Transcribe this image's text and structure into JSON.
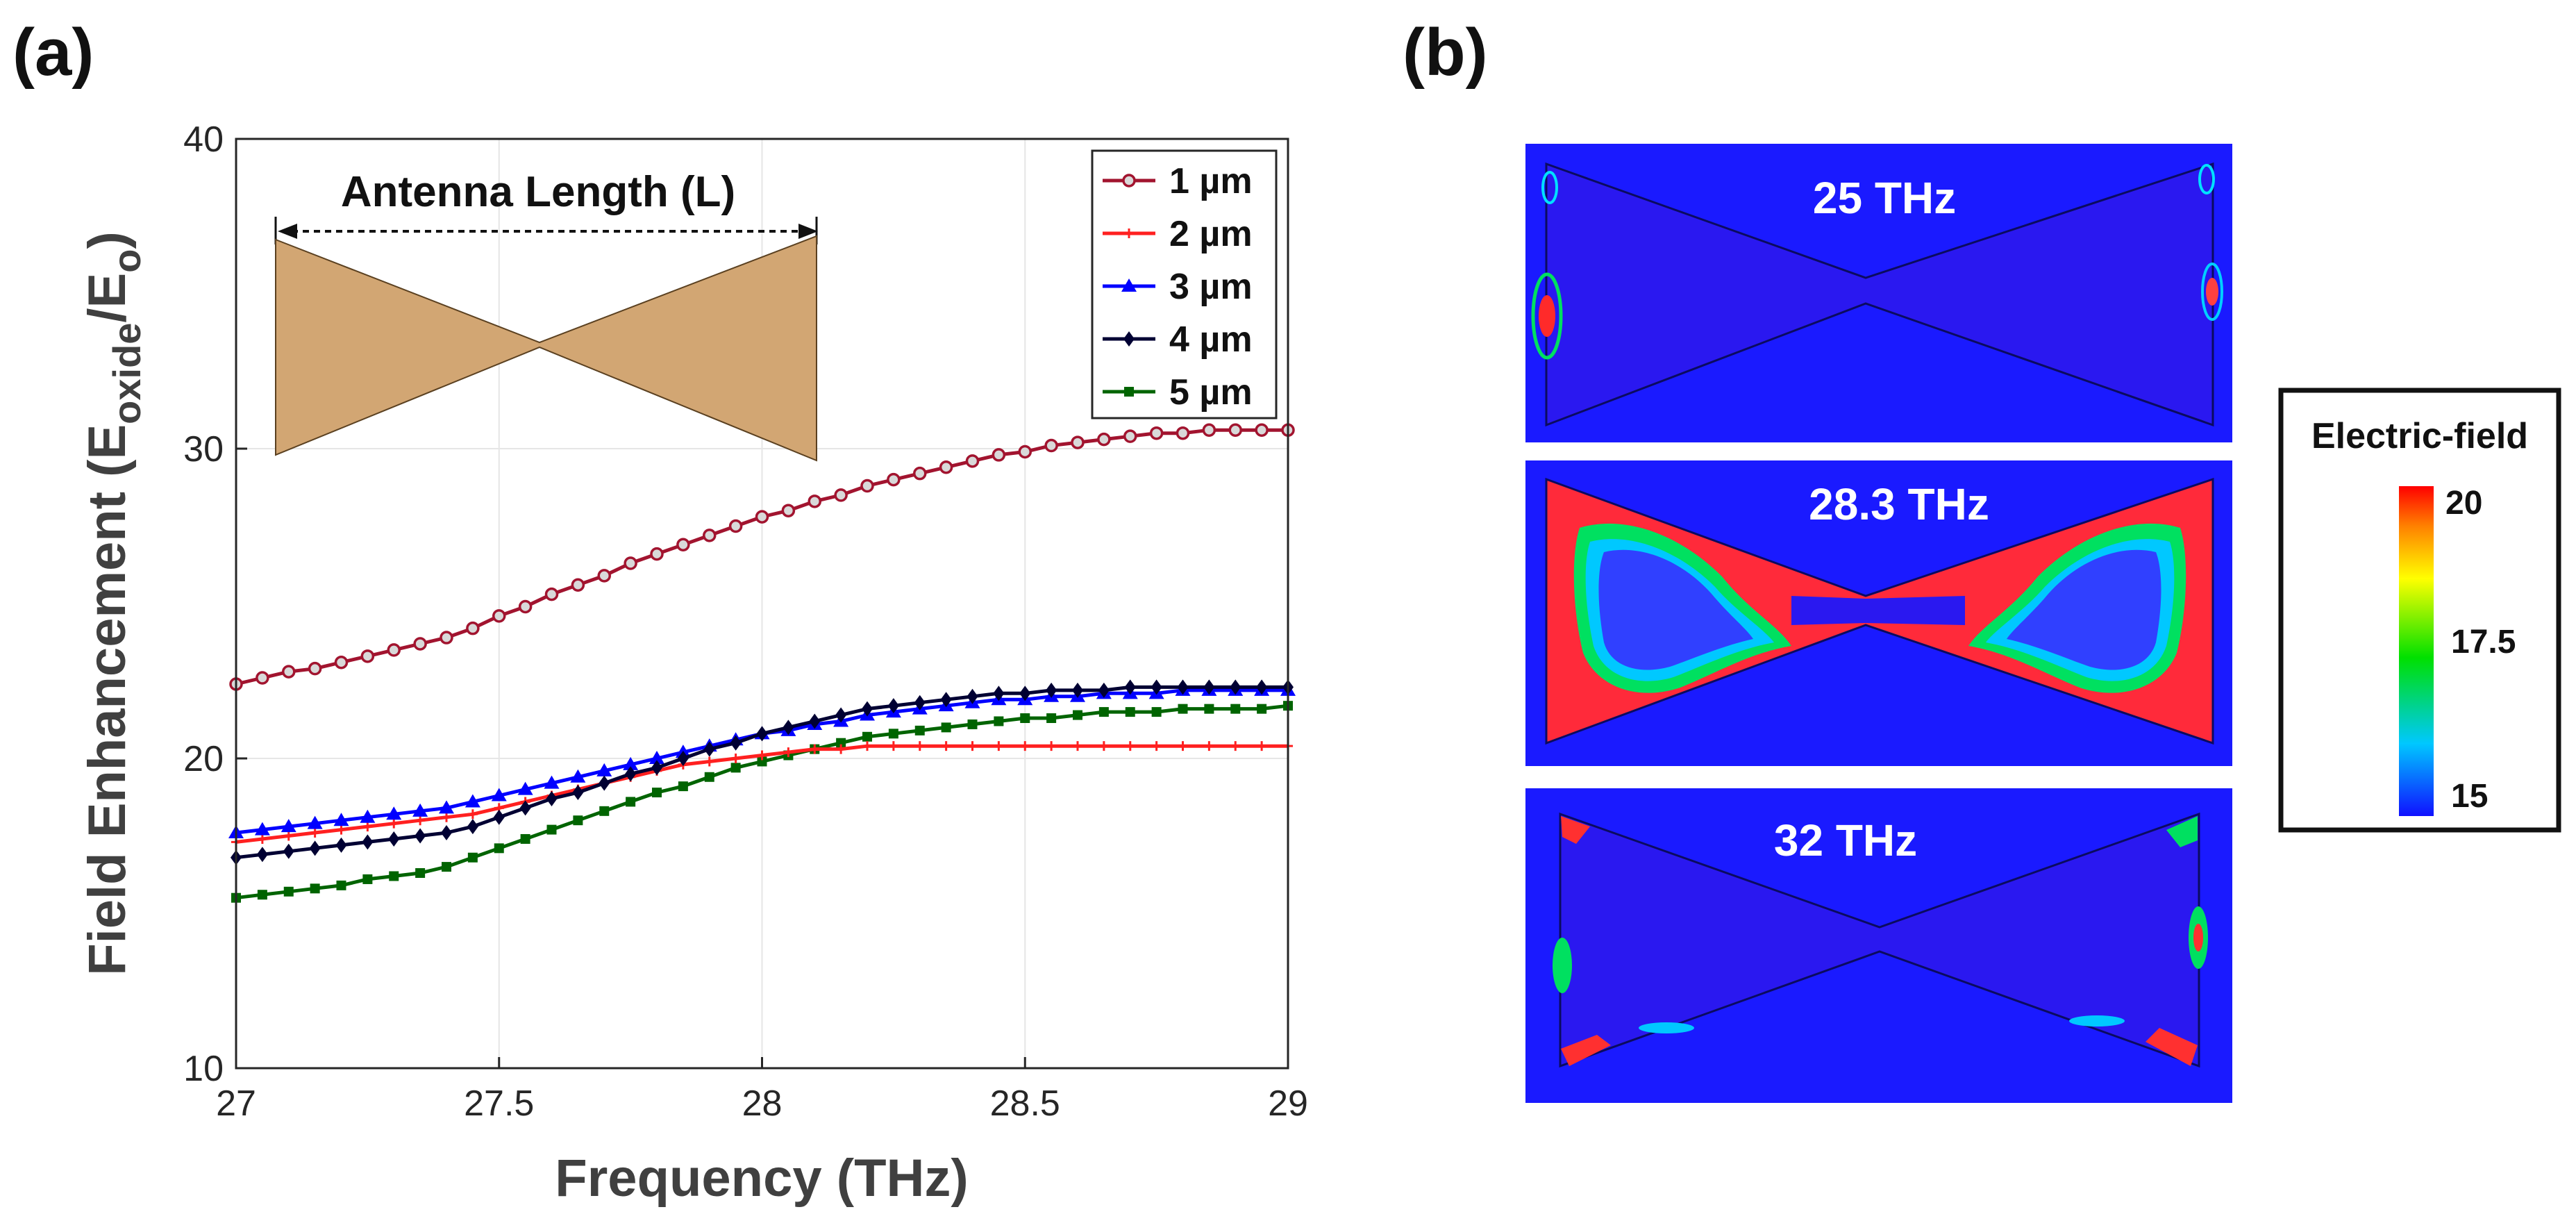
{
  "panel_a_label": "(a)",
  "panel_b_label": "(b)",
  "chart_data": {
    "type": "line",
    "xlabel": "Frequency (THz)",
    "ylabel_parts": [
      "Field Enhancement (E",
      "oxide",
      "/E",
      "o",
      ")"
    ],
    "xlim": [
      27,
      29
    ],
    "ylim": [
      10,
      40
    ],
    "xticks": [
      "27",
      "27.5",
      "28",
      "28.5",
      "29"
    ],
    "yticks": [
      "10",
      "20",
      "30",
      "40"
    ],
    "grid": true,
    "legend_position": "top-right",
    "x_start": 27,
    "x_step": 0.05,
    "series": [
      {
        "name": "1 µm",
        "color": "#a2142f",
        "marker": "circle",
        "values": [
          22.4,
          22.6,
          22.8,
          22.9,
          23.1,
          23.3,
          23.5,
          23.7,
          23.9,
          24.2,
          24.6,
          24.9,
          25.3,
          25.6,
          25.9,
          26.3,
          26.6,
          26.9,
          27.2,
          27.5,
          27.8,
          28.0,
          28.3,
          28.5,
          28.8,
          29.0,
          29.2,
          29.4,
          29.6,
          29.8,
          29.9,
          30.1,
          30.2,
          30.3,
          30.4,
          30.5,
          30.5,
          30.6,
          30.6,
          30.6,
          30.6
        ]
      },
      {
        "name": "2 µm",
        "color": "#ff2020",
        "marker": "plus",
        "values": [
          17.3,
          17.4,
          17.5,
          17.6,
          17.7,
          17.8,
          17.9,
          18.0,
          18.1,
          18.2,
          18.4,
          18.6,
          18.8,
          19.0,
          19.2,
          19.4,
          19.6,
          19.8,
          19.9,
          20.0,
          20.1,
          20.2,
          20.3,
          20.3,
          20.4,
          20.4,
          20.4,
          20.4,
          20.4,
          20.4,
          20.4,
          20.4,
          20.4,
          20.4,
          20.4,
          20.4,
          20.4,
          20.4,
          20.4,
          20.4,
          20.4
        ]
      },
      {
        "name": "3 µm",
        "color": "#0000ff",
        "marker": "triangle",
        "values": [
          17.6,
          17.7,
          17.8,
          17.9,
          18.0,
          18.1,
          18.2,
          18.3,
          18.4,
          18.6,
          18.8,
          19.0,
          19.2,
          19.4,
          19.6,
          19.8,
          20.0,
          20.2,
          20.4,
          20.6,
          20.8,
          20.9,
          21.1,
          21.2,
          21.4,
          21.5,
          21.6,
          21.7,
          21.8,
          21.9,
          21.9,
          22.0,
          22.0,
          22.1,
          22.1,
          22.1,
          22.2,
          22.2,
          22.2,
          22.2,
          22.2
        ]
      },
      {
        "name": "4 µm",
        "color": "#000033",
        "marker": "diamond",
        "values": [
          16.8,
          16.9,
          17.0,
          17.1,
          17.2,
          17.3,
          17.4,
          17.5,
          17.6,
          17.8,
          18.1,
          18.4,
          18.7,
          18.9,
          19.2,
          19.5,
          19.7,
          20.0,
          20.3,
          20.5,
          20.8,
          21.0,
          21.2,
          21.4,
          21.6,
          21.7,
          21.8,
          21.9,
          22.0,
          22.1,
          22.1,
          22.2,
          22.2,
          22.2,
          22.3,
          22.3,
          22.3,
          22.3,
          22.3,
          22.3,
          22.3
        ]
      },
      {
        "name": "5 µm",
        "color": "#006400",
        "marker": "square",
        "values": [
          15.5,
          15.6,
          15.7,
          15.8,
          15.9,
          16.1,
          16.2,
          16.3,
          16.5,
          16.8,
          17.1,
          17.4,
          17.7,
          18.0,
          18.3,
          18.6,
          18.9,
          19.1,
          19.4,
          19.7,
          19.9,
          20.1,
          20.3,
          20.5,
          20.7,
          20.8,
          20.9,
          21.0,
          21.1,
          21.2,
          21.3,
          21.3,
          21.4,
          21.5,
          21.5,
          21.5,
          21.6,
          21.6,
          21.6,
          21.6,
          21.7
        ]
      }
    ]
  },
  "inset": {
    "title": "Antenna Length (L)",
    "fill_color": "#d2a673"
  },
  "field_maps": [
    {
      "label": "25 THz"
    },
    {
      "label": "28.3 THz"
    },
    {
      "label": "32 THz"
    }
  ],
  "colorbar": {
    "title": "Electric-field",
    "ticks": [
      "20",
      "17.5",
      "15"
    ]
  }
}
